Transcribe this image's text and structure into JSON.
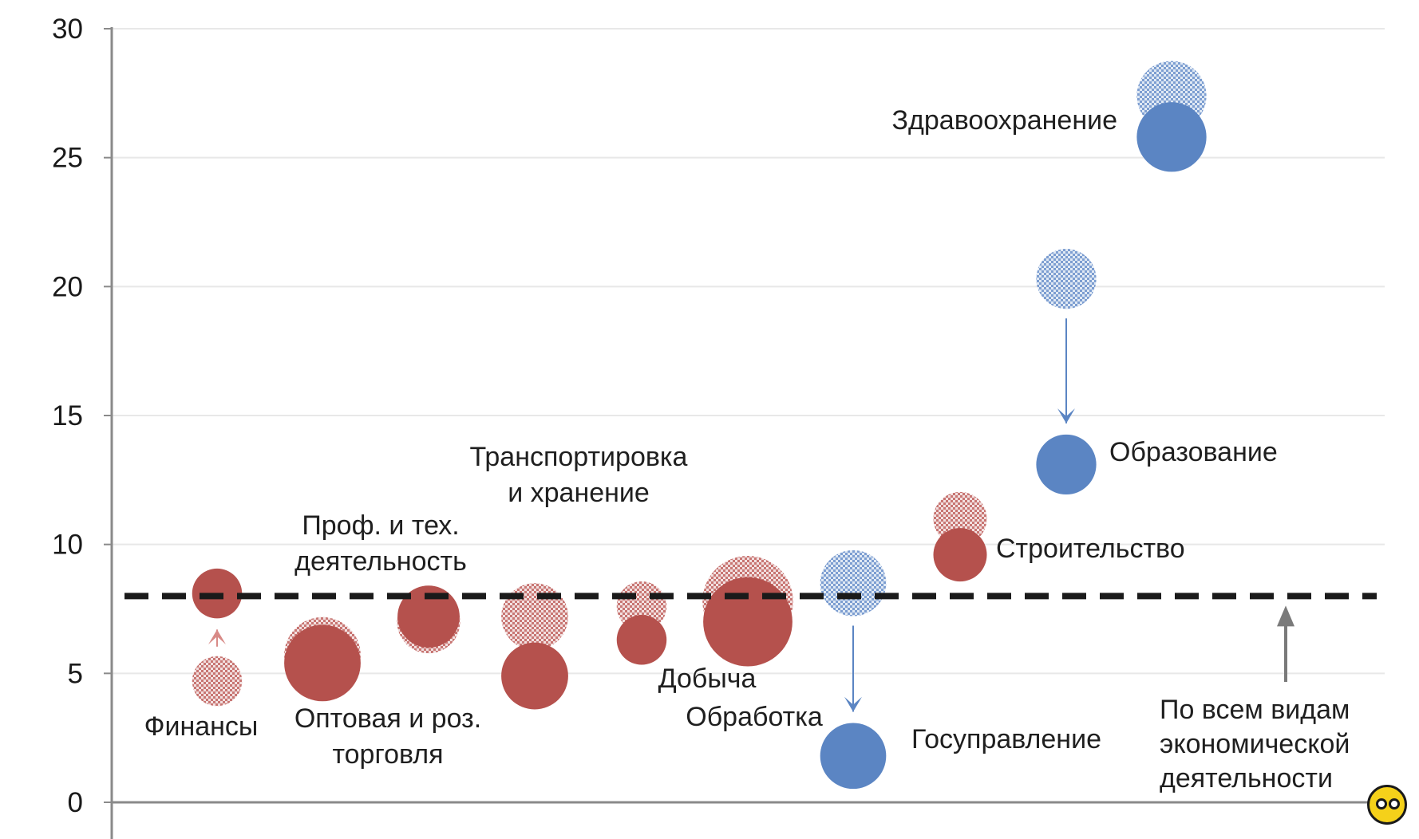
{
  "chart_data": {
    "type": "bubble",
    "title": "",
    "xlabel": "",
    "ylabel": "",
    "ylim": [
      0,
      30
    ],
    "yticks": [
      0,
      5,
      10,
      15,
      20,
      25,
      30
    ],
    "grid": true,
    "colors": {
      "private": "#b5514d",
      "public": "#5b85c3",
      "reference": "#1a1a1a",
      "guide": "#e8e8e8"
    },
    "reference_line": {
      "value": 8,
      "label": "По всем видам экономической деятельности",
      "label_lines": [
        "По всем видам",
        "экономической",
        "деятельности"
      ]
    },
    "points": [
      {
        "label_lines": [
          "Финансы"
        ],
        "group": "private",
        "before": 4.7,
        "after": 8.1,
        "size_before": 1.0,
        "size_after": 1.0,
        "x": 1
      },
      {
        "label_lines": [
          "Оптовая и роз.",
          "торговля"
        ],
        "group": "private",
        "before": 5.7,
        "after": 5.4,
        "size_before": 2.35,
        "size_after": 2.35,
        "x": 2
      },
      {
        "label_lines": [
          "Проф. и тех.",
          "деятельность"
        ],
        "group": "private",
        "before": 7.0,
        "after": 7.2,
        "size_before": 1.6,
        "size_after": 1.55,
        "x": 3
      },
      {
        "label_lines": [
          "Транспортировка",
          "и хранение"
        ],
        "group": "private",
        "before": 7.2,
        "after": 4.9,
        "size_before": 1.8,
        "size_after": 1.8,
        "x": 4
      },
      {
        "label_lines": [
          "Добыча"
        ],
        "group": "private",
        "before": 7.6,
        "after": 6.3,
        "size_before": 1.0,
        "size_after": 1.0,
        "x": 5
      },
      {
        "label_lines": [
          "Обработка"
        ],
        "group": "private",
        "before": 7.8,
        "after": 7.0,
        "size_before": 3.3,
        "size_after": 3.2,
        "x": 6
      },
      {
        "label_lines": [
          "Госуправление"
        ],
        "group": "public",
        "before": 8.5,
        "after": 1.8,
        "size_before": 1.75,
        "size_after": 1.75,
        "x": 7
      },
      {
        "label_lines": [
          "Строительство"
        ],
        "group": "private",
        "before": 11.0,
        "after": 9.6,
        "size_before": 1.15,
        "size_after": 1.15,
        "x": 8
      },
      {
        "label_lines": [
          "Образование"
        ],
        "group": "public",
        "before": 20.3,
        "after": 13.1,
        "size_before": 1.45,
        "size_after": 1.45,
        "x": 9
      },
      {
        "label_lines": [
          "Здравоохранение"
        ],
        "group": "public",
        "before": 27.4,
        "after": 25.8,
        "size_before": 1.95,
        "size_after": 1.95,
        "x": 10
      }
    ]
  }
}
